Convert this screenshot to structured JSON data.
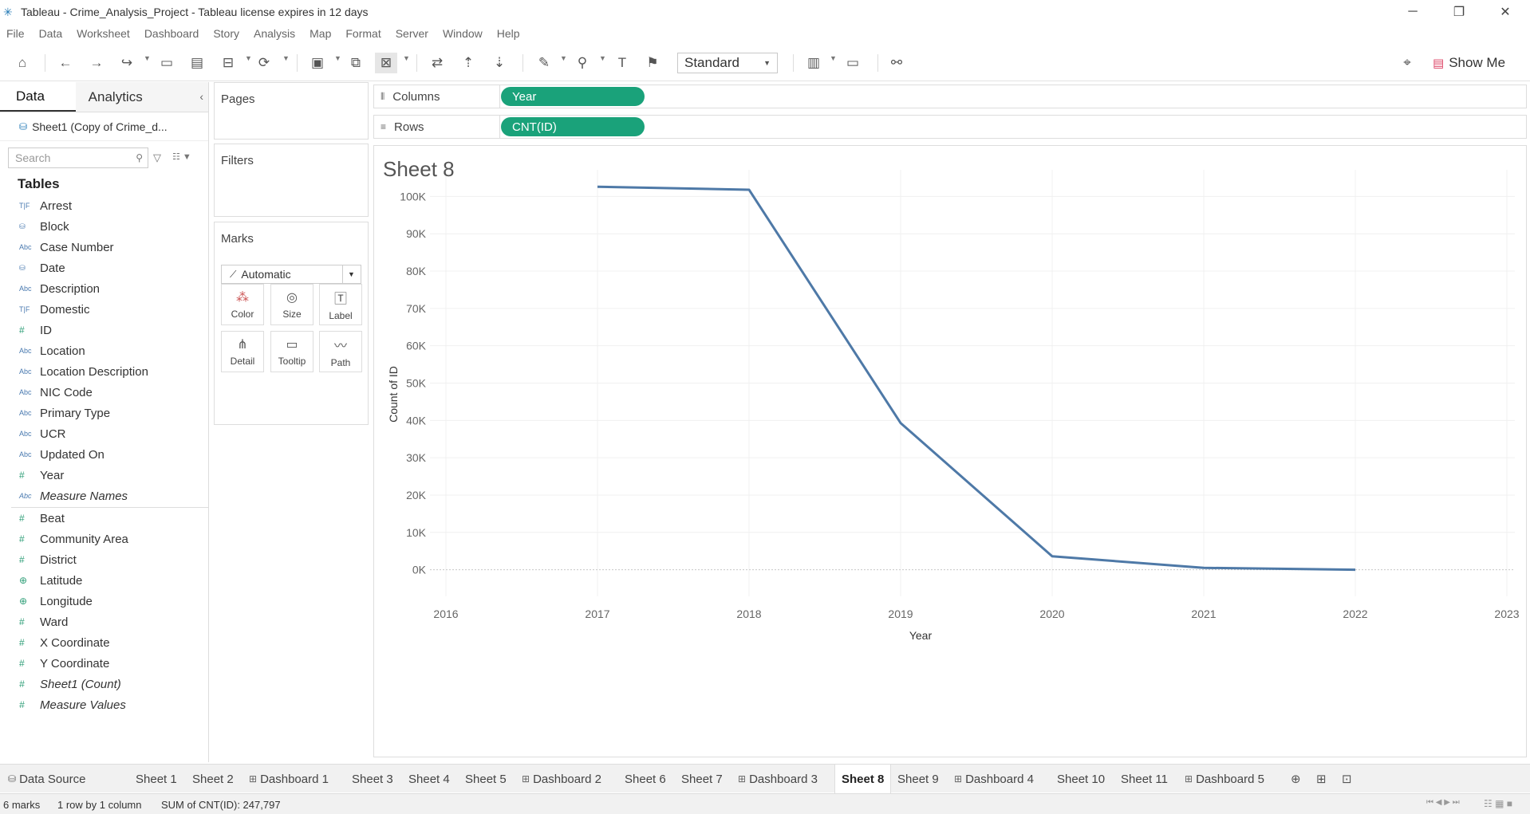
{
  "window": {
    "title": "Tableau - Crime_Analysis_Project - Tableau license expires in 12 days",
    "controls": {
      "minimize": "─",
      "restore": "❐",
      "close": "✕"
    }
  },
  "menu": [
    "File",
    "Data",
    "Worksheet",
    "Dashboard",
    "Story",
    "Analysis",
    "Map",
    "Format",
    "Server",
    "Window",
    "Help"
  ],
  "toolbar": {
    "fit": "Standard",
    "show_me": "Show Me"
  },
  "datapane": {
    "tabs": {
      "data": "Data",
      "analytics": "Analytics"
    },
    "datasource": "Sheet1 (Copy of Crime_d...",
    "search_placeholder": "Search",
    "tables_heading": "Tables",
    "dimensions": [
      {
        "type": "T|F",
        "name": "Arrest"
      },
      {
        "type": "geo",
        "name": "Block"
      },
      {
        "type": "Abc",
        "name": "Case Number"
      },
      {
        "type": "date",
        "name": "Date"
      },
      {
        "type": "Abc",
        "name": "Description"
      },
      {
        "type": "T|F",
        "name": "Domestic"
      },
      {
        "type": "#",
        "name": "ID"
      },
      {
        "type": "Abc",
        "name": "Location"
      },
      {
        "type": "Abc",
        "name": "Location Description"
      },
      {
        "type": "Abc",
        "name": "NIC Code"
      },
      {
        "type": "Abc",
        "name": "Primary Type"
      },
      {
        "type": "Abc",
        "name": "UCR"
      },
      {
        "type": "Abc",
        "name": "Updated On"
      },
      {
        "type": "#",
        "name": "Year"
      },
      {
        "type": "Abc",
        "name": "Measure Names",
        "italic": true
      }
    ],
    "measures": [
      {
        "type": "#",
        "name": "Beat"
      },
      {
        "type": "#",
        "name": "Community Area"
      },
      {
        "type": "#",
        "name": "District"
      },
      {
        "type": "globe",
        "name": "Latitude"
      },
      {
        "type": "globe",
        "name": "Longitude"
      },
      {
        "type": "#",
        "name": "Ward"
      },
      {
        "type": "#",
        "name": "X Coordinate"
      },
      {
        "type": "#",
        "name": "Y Coordinate"
      },
      {
        "type": "#",
        "name": "Sheet1 (Count)",
        "italic": true
      },
      {
        "type": "#",
        "name": "Measure Values",
        "italic": true
      }
    ]
  },
  "cards": {
    "pages": "Pages",
    "filters": "Filters",
    "marks": "Marks",
    "mark_type": "Automatic",
    "mark_buttons": [
      "Color",
      "Size",
      "Label",
      "Detail",
      "Tooltip",
      "Path"
    ]
  },
  "shelves": {
    "columns_label": "Columns",
    "columns_pill": "Year",
    "rows_label": "Rows",
    "rows_pill": "CNT(ID)"
  },
  "sheet": {
    "title": "Sheet 8"
  },
  "chart_data": {
    "type": "line",
    "title": "Sheet 8",
    "xlabel": "Year",
    "ylabel": "Count of ID",
    "x": [
      2017,
      2018,
      2019,
      2020,
      2021,
      2022
    ],
    "values": [
      102600,
      101800,
      39300,
      3600,
      500,
      0
    ],
    "xlim": [
      2016,
      2023
    ],
    "ylim": [
      -5000,
      105000
    ],
    "x_ticks": [
      "2016",
      "2017",
      "2018",
      "2019",
      "2020",
      "2021",
      "2022",
      "2023"
    ],
    "y_ticks": [
      "0K",
      "10K",
      "20K",
      "30K",
      "40K",
      "50K",
      "60K",
      "70K",
      "80K",
      "90K",
      "100K"
    ],
    "line_color": "#4e79a7",
    "grid": true
  },
  "sheet_tabs": [
    {
      "name": "Data Source",
      "kind": "source"
    },
    {
      "name": "Sheet 1",
      "kind": "sheet"
    },
    {
      "name": "Sheet 2",
      "kind": "sheet"
    },
    {
      "name": "Dashboard 1",
      "kind": "dashboard"
    },
    {
      "name": "Sheet 3",
      "kind": "sheet"
    },
    {
      "name": "Sheet 4",
      "kind": "sheet"
    },
    {
      "name": "Sheet 5",
      "kind": "sheet"
    },
    {
      "name": "Dashboard 2",
      "kind": "dashboard"
    },
    {
      "name": "Sheet 6",
      "kind": "sheet"
    },
    {
      "name": "Sheet 7",
      "kind": "sheet"
    },
    {
      "name": "Dashboard 3",
      "kind": "dashboard"
    },
    {
      "name": "Sheet 8",
      "kind": "sheet",
      "active": true
    },
    {
      "name": "Sheet 9",
      "kind": "sheet"
    },
    {
      "name": "Dashboard 4",
      "kind": "dashboard"
    },
    {
      "name": "Sheet 10",
      "kind": "sheet"
    },
    {
      "name": "Sheet 11",
      "kind": "sheet"
    },
    {
      "name": "Dashboard 5",
      "kind": "dashboard"
    }
  ],
  "status": {
    "marks": "6 marks",
    "rows_cols": "1 row by 1 column",
    "sum": "SUM of CNT(ID): 247,797"
  }
}
